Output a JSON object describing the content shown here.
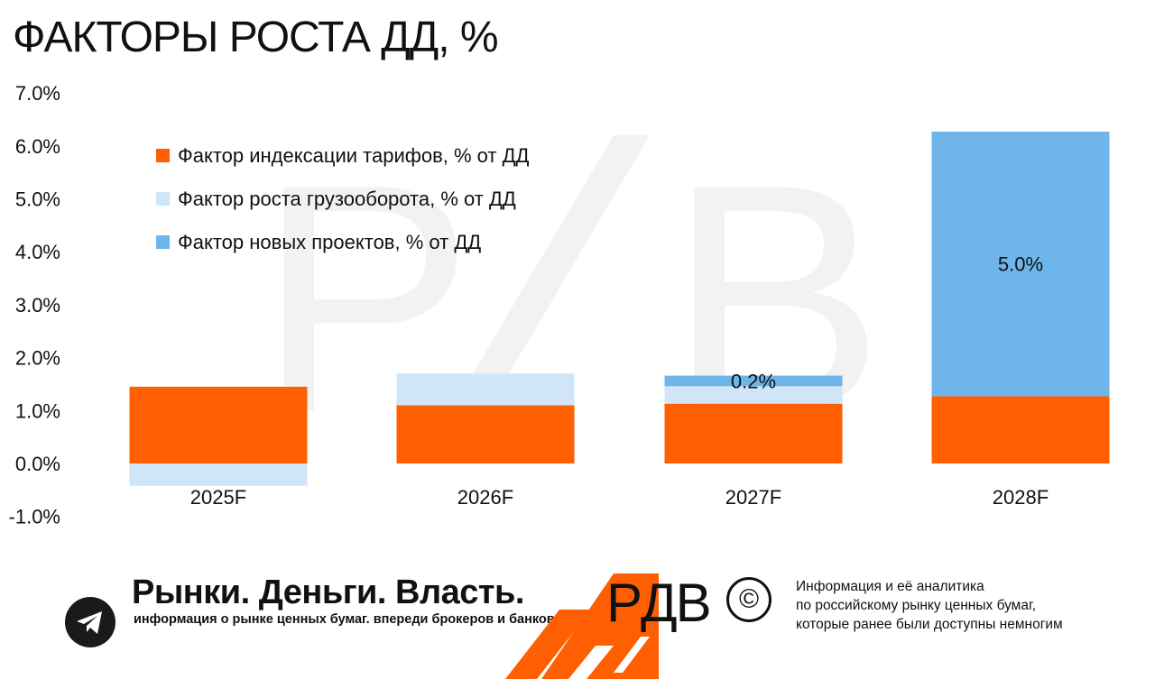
{
  "title": "ФАКТОРЫ РОСТА ДД, %",
  "colors": {
    "tariff": "#ff5f00",
    "freight": "#d0e6f8",
    "projects": "#6db5ea",
    "watermark": "#f2f2f2"
  },
  "chart_data": {
    "type": "bar",
    "stacked": true,
    "categories": [
      "2025F",
      "2026F",
      "2027F",
      "2028F"
    ],
    "series": [
      {
        "name": "Фактор индексации тарифов, % от ДД",
        "values": [
          1.45,
          1.1,
          1.13,
          1.27
        ]
      },
      {
        "name": "Фактор роста грузооборота, % от ДД",
        "values": [
          -0.42,
          0.6,
          0.33,
          0.0
        ]
      },
      {
        "name": "Фактор новых проектов, % от ДД",
        "values": [
          0.0,
          0.0,
          0.2,
          5.0
        ]
      }
    ],
    "y_ticks": [
      "7.0%",
      "6.0%",
      "5.0%",
      "4.0%",
      "3.0%",
      "2.0%",
      "1.0%",
      "0.0%",
      "-1.0%"
    ],
    "ylim": [
      -1.0,
      7.0
    ],
    "data_labels": [
      {
        "category": "2027F",
        "series": 2,
        "text": "0.2%"
      },
      {
        "category": "2028F",
        "series": 2,
        "text": "5.0%"
      }
    ],
    "legend_position": "top-left",
    "grid": false
  },
  "footer": {
    "brand_name": "Рынки. Деньги. Власть.",
    "brand_tagline": "информация о рынке ценных бумаг. впереди брокеров и банков.",
    "logo_text": "PДB",
    "copyright_symbol": "©",
    "info_lines": [
      "Информация и её аналитика",
      "по российскому рынку ценных бумаг,",
      "которые ранее были доступны немногим"
    ]
  }
}
